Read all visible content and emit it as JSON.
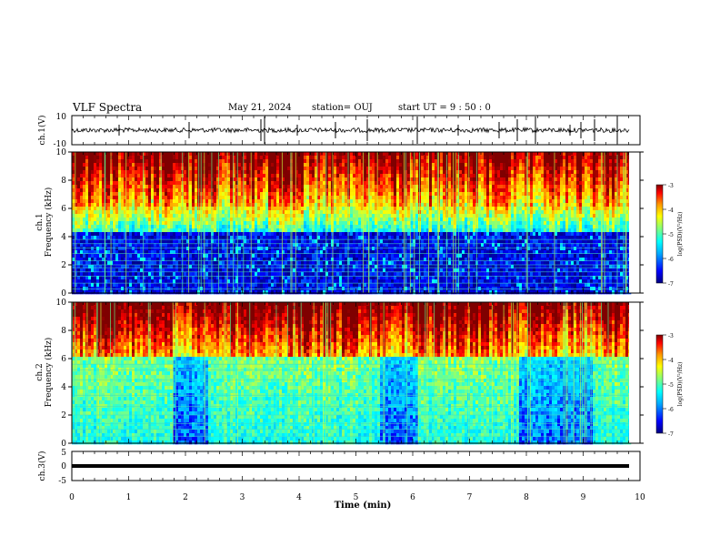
{
  "header": {
    "title": "VLF Spectra",
    "date": "May 21, 2024",
    "station": "station= OUJ",
    "start": "start  UT  =   9  : 50 : 0"
  },
  "colors": {
    "waveform": "#000000",
    "colormap": [
      "#00007f",
      "#0000ff",
      "#00b4ff",
      "#00ffff",
      "#7fff7f",
      "#ffff00",
      "#ff9900",
      "#ff0000",
      "#7f0000"
    ]
  },
  "chart_data": [
    {
      "type": "line",
      "panel": "ch1-waveform",
      "ylabel": "ch.1(V)",
      "yticks": [
        "10",
        "-10"
      ],
      "ylim": [
        -10,
        10
      ],
      "xlim": [
        0,
        10
      ],
      "description_values": {
        "baseline": 0,
        "typical_amplitude": 1.5,
        "max_spike": 4.5
      }
    },
    {
      "type": "heatmap",
      "panel": "ch1-spectrogram",
      "ylabel": "ch.1\nFrequency  (kHz)",
      "ylim": [
        0,
        10
      ],
      "yticks": [
        "0",
        "2",
        "4",
        "6",
        "8",
        "10"
      ],
      "xlim": [
        0,
        10
      ],
      "colorbar": {
        "label": "log(PSD)(V²/Hz)",
        "range": [
          -7,
          -3
        ],
        "ticks": [
          "-3",
          "-4",
          "-5",
          "-6",
          "-7"
        ]
      }
    },
    {
      "type": "heatmap",
      "panel": "ch2-spectrogram",
      "ylabel": "ch.2\nFrequency  (kHz)",
      "ylim": [
        0,
        10
      ],
      "yticks": [
        "0",
        "2",
        "4",
        "6",
        "8",
        "10"
      ],
      "xlim": [
        0,
        10
      ],
      "colorbar": {
        "label": "log(PSD)(V²/Hz)",
        "range": [
          -7,
          -3
        ],
        "ticks": [
          "-3",
          "-4",
          "-5",
          "-6",
          "-7"
        ]
      }
    },
    {
      "type": "line",
      "panel": "ch3-waveform",
      "ylabel": "ch.3(V)",
      "yticks": [
        "5",
        "0",
        "-5"
      ],
      "ylim": [
        -5,
        5
      ],
      "xlim": [
        0,
        10
      ],
      "description_values": {
        "baseline": 0
      }
    }
  ],
  "xaxis": {
    "label": "Time  (min)",
    "ticks": [
      "0",
      "1",
      "2",
      "3",
      "4",
      "5",
      "6",
      "7",
      "8",
      "9",
      "10"
    ]
  }
}
